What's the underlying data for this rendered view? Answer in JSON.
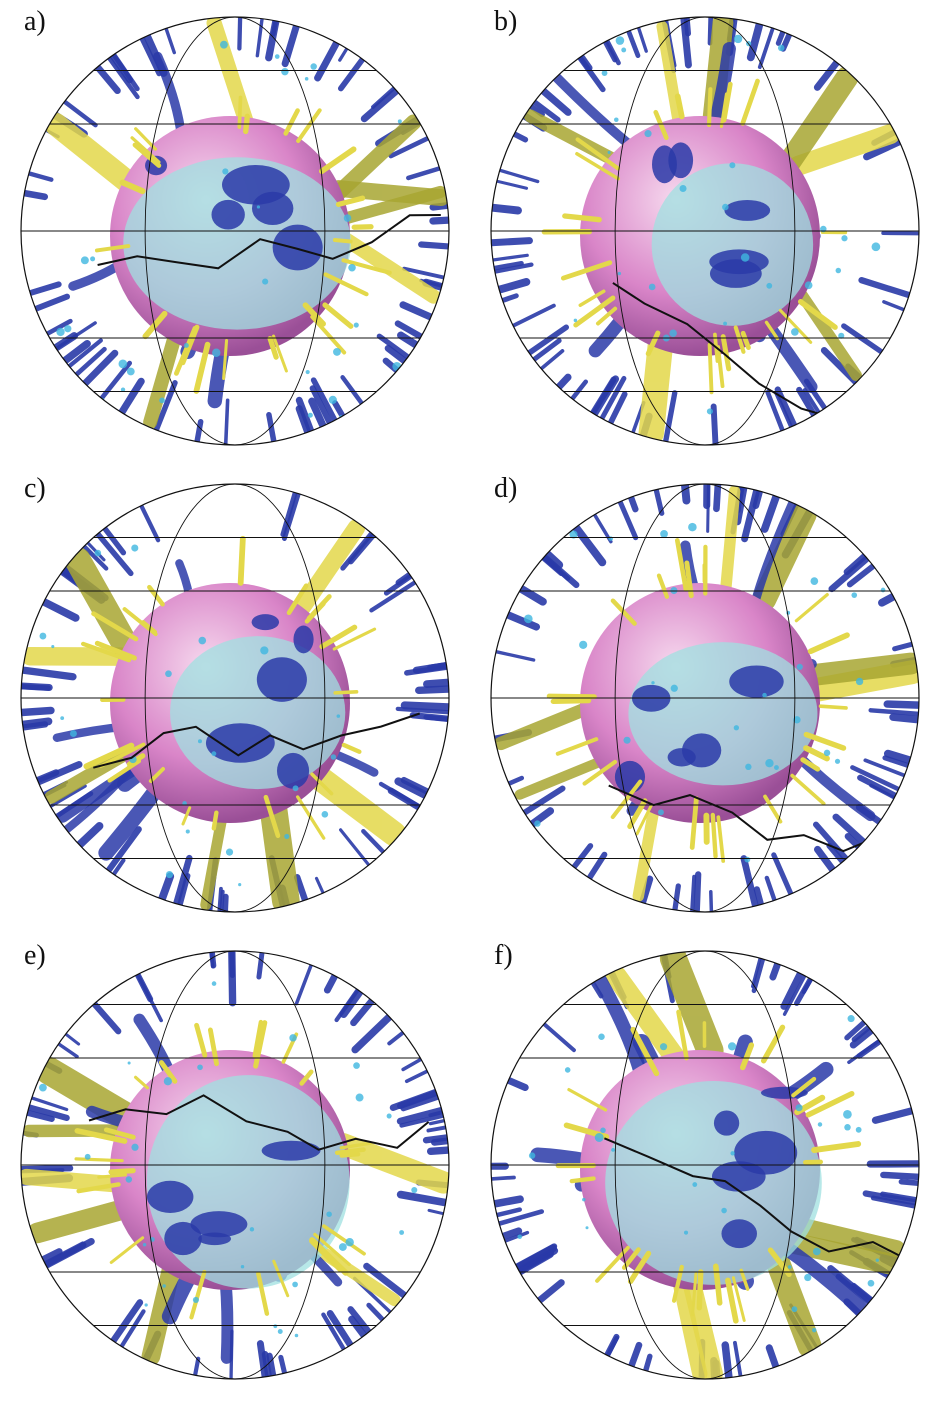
{
  "figure": {
    "panels": [
      {
        "label": "a)",
        "scene": "mantle-plume-globe"
      },
      {
        "label": "b)",
        "scene": "mantle-plume-globe"
      },
      {
        "label": "c)",
        "scene": "mantle-plume-globe"
      },
      {
        "label": "d)",
        "scene": "mantle-plume-globe"
      },
      {
        "label": "e)",
        "scene": "mantle-plume-globe-with-continents"
      },
      {
        "label": "f)",
        "scene": "mantle-plume-globe-with-continents"
      }
    ],
    "colors": {
      "cold_blue": "#2a3aa8",
      "hot_yellow": "#e3d84a",
      "olive": "#a8a632",
      "core_pink": "#d985c8",
      "cyan": "#9fe0e0",
      "outline": "#111111"
    }
  }
}
